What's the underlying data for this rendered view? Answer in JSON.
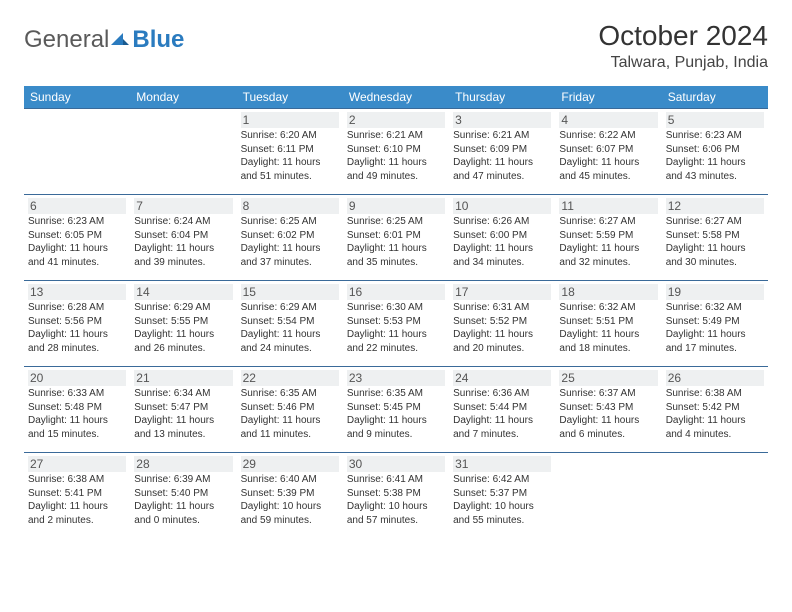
{
  "brand": {
    "part1": "General",
    "part2": "Blue"
  },
  "title": "October 2024",
  "location": "Talwara, Punjab, India",
  "colors": {
    "header_bg": "#3a8bc9",
    "header_text": "#ffffff",
    "row_border": "#3a6a99",
    "shade_bg": "#eef0f1",
    "logo_blue": "#2a7bbf",
    "logo_gray": "#5a5a5a"
  },
  "weekdays": [
    "Sunday",
    "Monday",
    "Tuesday",
    "Wednesday",
    "Thursday",
    "Friday",
    "Saturday"
  ],
  "weeks": [
    [
      null,
      null,
      {
        "n": "1",
        "sr": "6:20 AM",
        "ss": "6:11 PM",
        "dl": "11 hours and 51 minutes."
      },
      {
        "n": "2",
        "sr": "6:21 AM",
        "ss": "6:10 PM",
        "dl": "11 hours and 49 minutes."
      },
      {
        "n": "3",
        "sr": "6:21 AM",
        "ss": "6:09 PM",
        "dl": "11 hours and 47 minutes."
      },
      {
        "n": "4",
        "sr": "6:22 AM",
        "ss": "6:07 PM",
        "dl": "11 hours and 45 minutes."
      },
      {
        "n": "5",
        "sr": "6:23 AM",
        "ss": "6:06 PM",
        "dl": "11 hours and 43 minutes."
      }
    ],
    [
      {
        "n": "6",
        "sr": "6:23 AM",
        "ss": "6:05 PM",
        "dl": "11 hours and 41 minutes."
      },
      {
        "n": "7",
        "sr": "6:24 AM",
        "ss": "6:04 PM",
        "dl": "11 hours and 39 minutes."
      },
      {
        "n": "8",
        "sr": "6:25 AM",
        "ss": "6:02 PM",
        "dl": "11 hours and 37 minutes."
      },
      {
        "n": "9",
        "sr": "6:25 AM",
        "ss": "6:01 PM",
        "dl": "11 hours and 35 minutes."
      },
      {
        "n": "10",
        "sr": "6:26 AM",
        "ss": "6:00 PM",
        "dl": "11 hours and 34 minutes."
      },
      {
        "n": "11",
        "sr": "6:27 AM",
        "ss": "5:59 PM",
        "dl": "11 hours and 32 minutes."
      },
      {
        "n": "12",
        "sr": "6:27 AM",
        "ss": "5:58 PM",
        "dl": "11 hours and 30 minutes."
      }
    ],
    [
      {
        "n": "13",
        "sr": "6:28 AM",
        "ss": "5:56 PM",
        "dl": "11 hours and 28 minutes."
      },
      {
        "n": "14",
        "sr": "6:29 AM",
        "ss": "5:55 PM",
        "dl": "11 hours and 26 minutes."
      },
      {
        "n": "15",
        "sr": "6:29 AM",
        "ss": "5:54 PM",
        "dl": "11 hours and 24 minutes."
      },
      {
        "n": "16",
        "sr": "6:30 AM",
        "ss": "5:53 PM",
        "dl": "11 hours and 22 minutes."
      },
      {
        "n": "17",
        "sr": "6:31 AM",
        "ss": "5:52 PM",
        "dl": "11 hours and 20 minutes."
      },
      {
        "n": "18",
        "sr": "6:32 AM",
        "ss": "5:51 PM",
        "dl": "11 hours and 18 minutes."
      },
      {
        "n": "19",
        "sr": "6:32 AM",
        "ss": "5:49 PM",
        "dl": "11 hours and 17 minutes."
      }
    ],
    [
      {
        "n": "20",
        "sr": "6:33 AM",
        "ss": "5:48 PM",
        "dl": "11 hours and 15 minutes."
      },
      {
        "n": "21",
        "sr": "6:34 AM",
        "ss": "5:47 PM",
        "dl": "11 hours and 13 minutes."
      },
      {
        "n": "22",
        "sr": "6:35 AM",
        "ss": "5:46 PM",
        "dl": "11 hours and 11 minutes."
      },
      {
        "n": "23",
        "sr": "6:35 AM",
        "ss": "5:45 PM",
        "dl": "11 hours and 9 minutes."
      },
      {
        "n": "24",
        "sr": "6:36 AM",
        "ss": "5:44 PM",
        "dl": "11 hours and 7 minutes."
      },
      {
        "n": "25",
        "sr": "6:37 AM",
        "ss": "5:43 PM",
        "dl": "11 hours and 6 minutes."
      },
      {
        "n": "26",
        "sr": "6:38 AM",
        "ss": "5:42 PM",
        "dl": "11 hours and 4 minutes."
      }
    ],
    [
      {
        "n": "27",
        "sr": "6:38 AM",
        "ss": "5:41 PM",
        "dl": "11 hours and 2 minutes."
      },
      {
        "n": "28",
        "sr": "6:39 AM",
        "ss": "5:40 PM",
        "dl": "11 hours and 0 minutes."
      },
      {
        "n": "29",
        "sr": "6:40 AM",
        "ss": "5:39 PM",
        "dl": "10 hours and 59 minutes."
      },
      {
        "n": "30",
        "sr": "6:41 AM",
        "ss": "5:38 PM",
        "dl": "10 hours and 57 minutes."
      },
      {
        "n": "31",
        "sr": "6:42 AM",
        "ss": "5:37 PM",
        "dl": "10 hours and 55 minutes."
      },
      null,
      null
    ]
  ],
  "labels": {
    "sunrise": "Sunrise:",
    "sunset": "Sunset:",
    "daylight": "Daylight:"
  }
}
